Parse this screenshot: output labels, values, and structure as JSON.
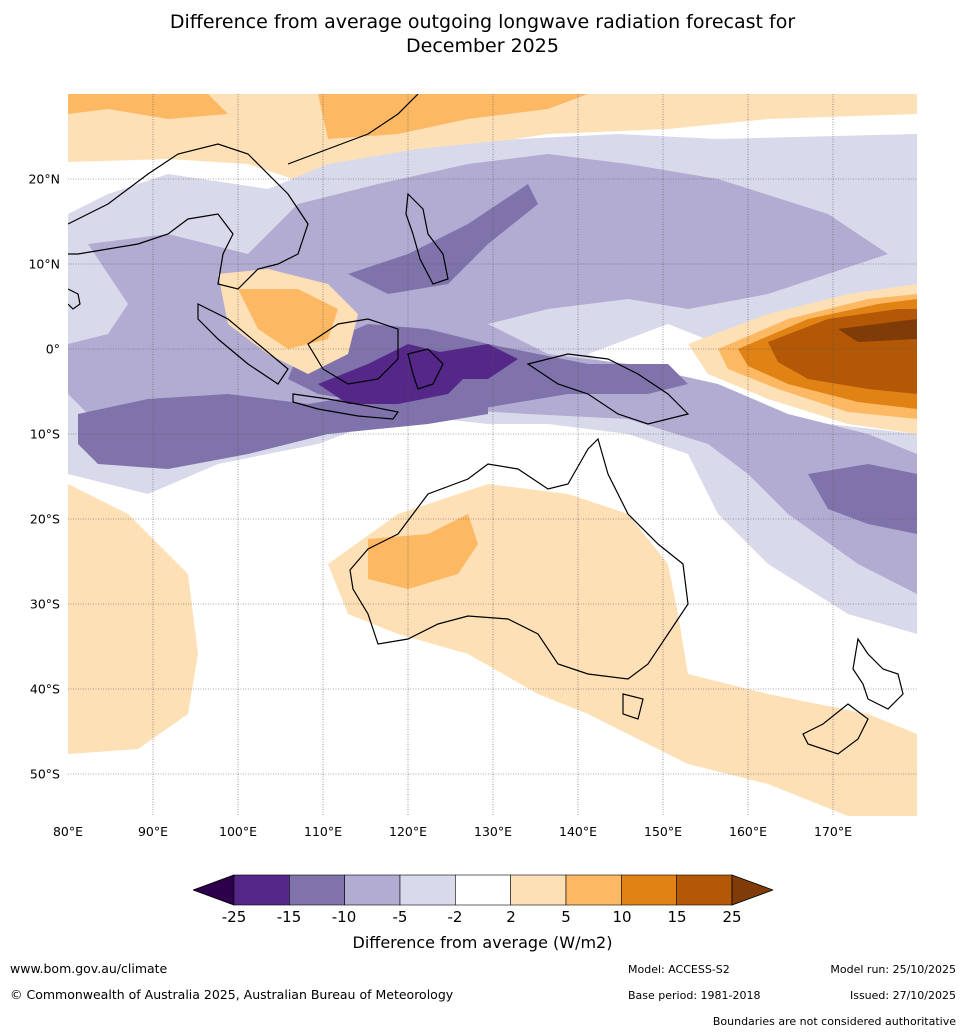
{
  "title": {
    "line1": "Difference from average outgoing longwave radiation forecast for",
    "line2": "December 2025"
  },
  "map": {
    "lat_labels": [
      "20°N",
      "10°N",
      "0°",
      "10°S",
      "20°S",
      "30°S",
      "40°S",
      "50°S"
    ],
    "lon_labels": [
      "80°E",
      "90°E",
      "100°E",
      "110°E",
      "120°E",
      "130°E",
      "140°E",
      "150°E",
      "160°E",
      "170°E"
    ],
    "lat_range": [
      30,
      -55
    ],
    "lon_range": [
      80,
      180
    ]
  },
  "colorbar": {
    "ticks": [
      "-25",
      "-15",
      "-10",
      "-5",
      "-2",
      "2",
      "5",
      "10",
      "15",
      "25"
    ],
    "colors": [
      "#542788",
      "#8073ac",
      "#b2abd2",
      "#d8daeb",
      "#ffffff",
      "#fee0b6",
      "#fdb863",
      "#e08214",
      "#b35806"
    ],
    "under_color": "#2d004b",
    "over_color": "#7f3b08",
    "label": "Difference from average (W/m2)"
  },
  "footer": {
    "url": "www.bom.gov.au/climate",
    "copyright": "© Commonwealth of Australia 2025, Australian Bureau of Meteorology",
    "model": "Model: ACCESS-S2",
    "base_period": "Base period: 1981-2018",
    "model_run": "Model run: 25/10/2025",
    "issued": "Issued: 27/10/2025",
    "disclaimer": "Boundaries are not considered authoritative"
  }
}
